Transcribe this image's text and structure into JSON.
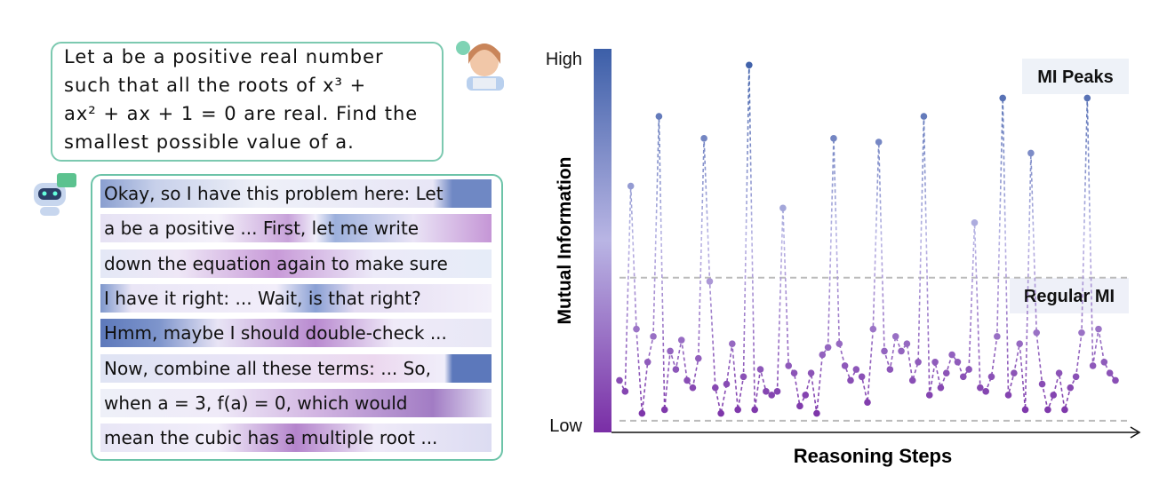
{
  "question": {
    "lines": [
      "Let a be a positive real number",
      "such that all the roots of x³ +",
      "ax² + ax + 1 = 0 are real. Find the",
      "smallest possible value of a."
    ]
  },
  "response": {
    "lines": [
      "Okay, so I have this problem here: Let",
      "a be a positive ... First, let me write",
      "down the equation again to make sure",
      "I have it right: ... Wait, is that right?",
      "Hmm, maybe I should double-check ...",
      "Now, combine all these terms: ... So,",
      "when a = 3, f(a) = 0, which would",
      "mean the cubic has a multiple root ..."
    ]
  },
  "chart_data": {
    "type": "line",
    "y_label": "Mutual Information",
    "x_label": "Reasoning Steps",
    "ylim": [
      0,
      100
    ],
    "yticks": [
      {
        "value": 0,
        "label": "Low"
      },
      {
        "value": 100,
        "label": "High"
      }
    ],
    "color_low": "#7a2ea6",
    "color_high": "#3c5fa8",
    "reference_lines": [
      40,
      1
    ],
    "annotations": [
      "MI Peaks",
      "Regular MI"
    ],
    "values": [
      12,
      9,
      65,
      26,
      3,
      17,
      24,
      84,
      4,
      20,
      15,
      23,
      12,
      10,
      18,
      78,
      39,
      10,
      3,
      11,
      22,
      4,
      13,
      98,
      4,
      15,
      9,
      8,
      9,
      59,
      16,
      14,
      5,
      8,
      14,
      3,
      19,
      21,
      78,
      22,
      16,
      12,
      15,
      13,
      6,
      26,
      77,
      20,
      15,
      24,
      20,
      22,
      12,
      17,
      84,
      8,
      17,
      10,
      14,
      19,
      17,
      13,
      15,
      55,
      10,
      9,
      13,
      24,
      89,
      8,
      14,
      22,
      4,
      74,
      25,
      11,
      4,
      8,
      14,
      4,
      10,
      13,
      25,
      89,
      16,
      26,
      17,
      14,
      12
    ]
  }
}
